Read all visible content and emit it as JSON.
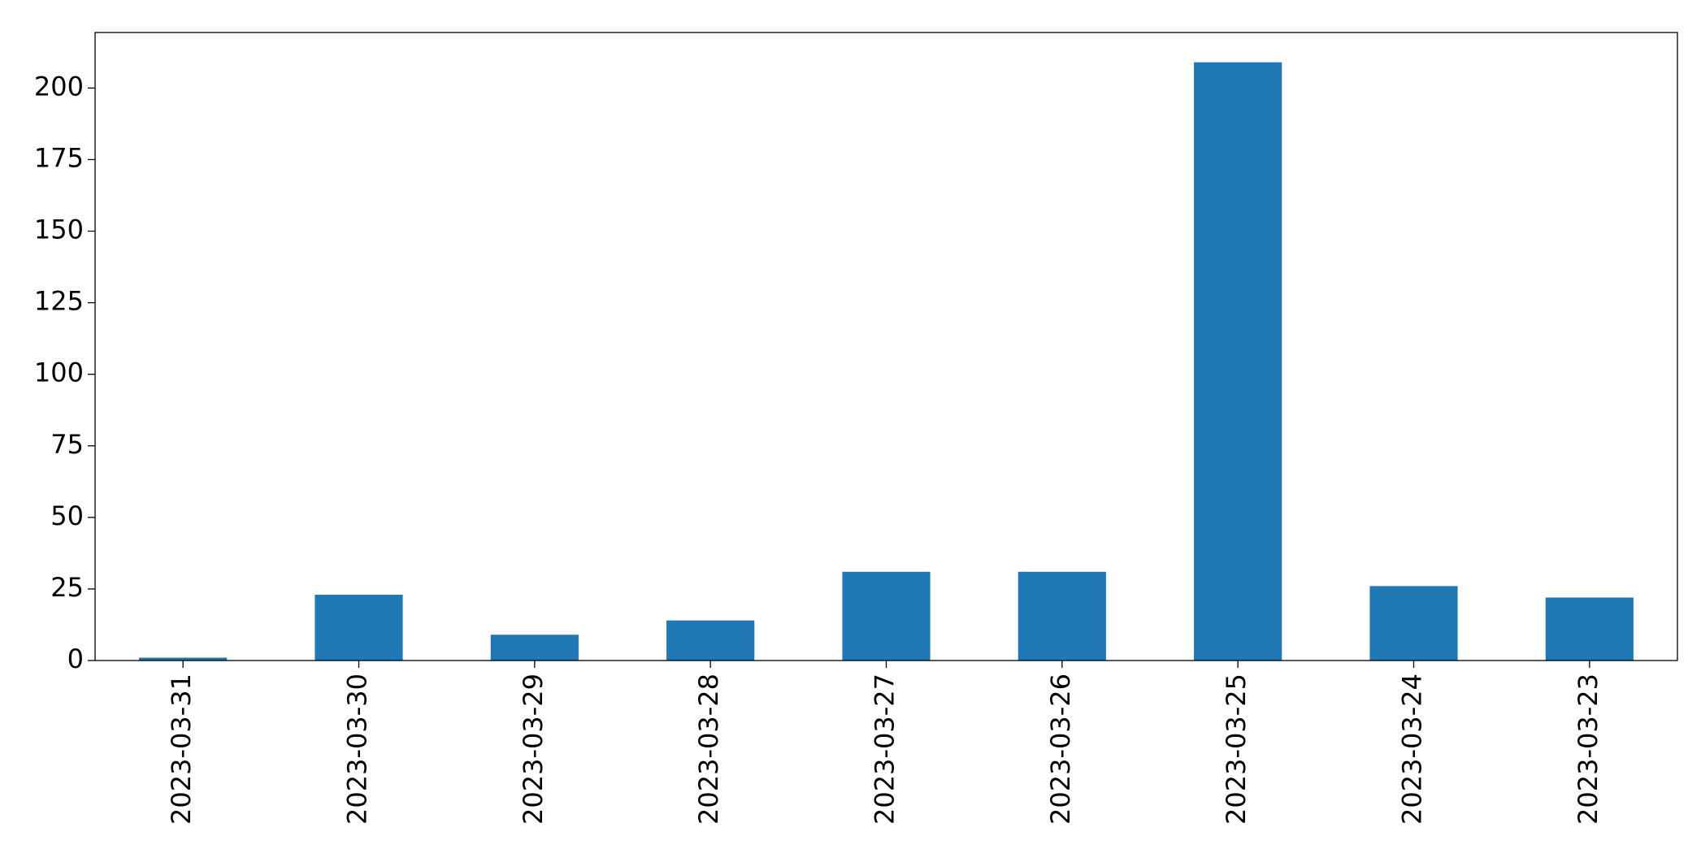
{
  "chart_data": {
    "type": "bar",
    "categories": [
      "2023-03-31",
      "2023-03-30",
      "2023-03-29",
      "2023-03-28",
      "2023-03-27",
      "2023-03-26",
      "2023-03-25",
      "2023-03-24",
      "2023-03-23"
    ],
    "values": [
      1,
      23,
      9,
      14,
      31,
      31,
      209,
      26,
      22
    ],
    "color": "#1f77b4",
    "ylim": [
      0,
      219.4
    ],
    "yticks": [
      0,
      25,
      50,
      75,
      100,
      125,
      150,
      175,
      200
    ],
    "grid": false
  }
}
